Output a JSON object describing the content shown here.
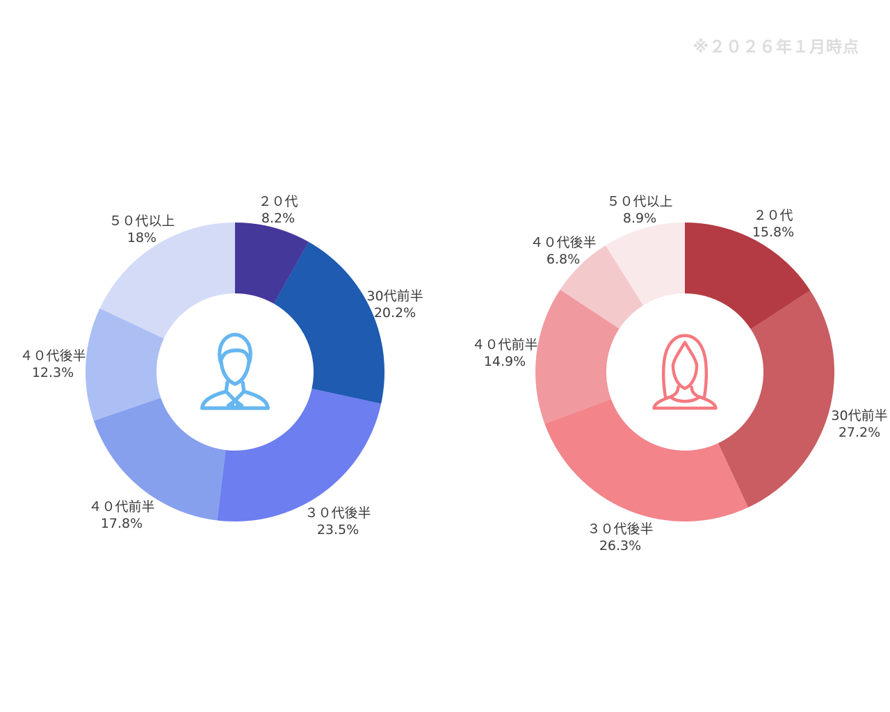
{
  "note": "※２０２６年１月時点",
  "chart_data": [
    {
      "type": "pie",
      "subtype": "donut",
      "group": "male",
      "icon": "male-user-icon",
      "icon_color": "#66b6f0",
      "categories": [
        "２０代",
        "30代前半",
        "３０代後半",
        "４０代前半",
        "４０代後半",
        "５０代以上"
      ],
      "values": [
        8.2,
        20.2,
        23.5,
        17.8,
        12.3,
        18
      ],
      "labels": [
        "8.2%",
        "20.2%",
        "23.5%",
        "17.8%",
        "12.3%",
        "18%"
      ],
      "colors": [
        "#45389b",
        "#1e5bb1",
        "#6d7ef0",
        "#86a0ee",
        "#acbff4",
        "#d4dbf7"
      ],
      "start_angle_deg": 0,
      "direction": "clockwise",
      "legend": "none",
      "inner_radius_ratio": 0.525
    },
    {
      "type": "pie",
      "subtype": "donut",
      "group": "female",
      "icon": "female-user-icon",
      "icon_color": "#f4797f",
      "categories": [
        "２０代",
        "30代前半",
        "３０代後半",
        "４０代前半",
        "４０代後半",
        "５０代以上"
      ],
      "values": [
        15.8,
        27.2,
        26.3,
        14.9,
        6.8,
        8.9
      ],
      "labels": [
        "15.8%",
        "27.2%",
        "26.3%",
        "14.9%",
        "6.8%",
        "8.9%"
      ],
      "colors": [
        "#b43b43",
        "#c95d61",
        "#f2848a",
        "#f0999e",
        "#f3c9cc",
        "#fae9ea"
      ],
      "start_angle_deg": 0,
      "direction": "clockwise",
      "legend": "none",
      "inner_radius_ratio": 0.525
    }
  ]
}
